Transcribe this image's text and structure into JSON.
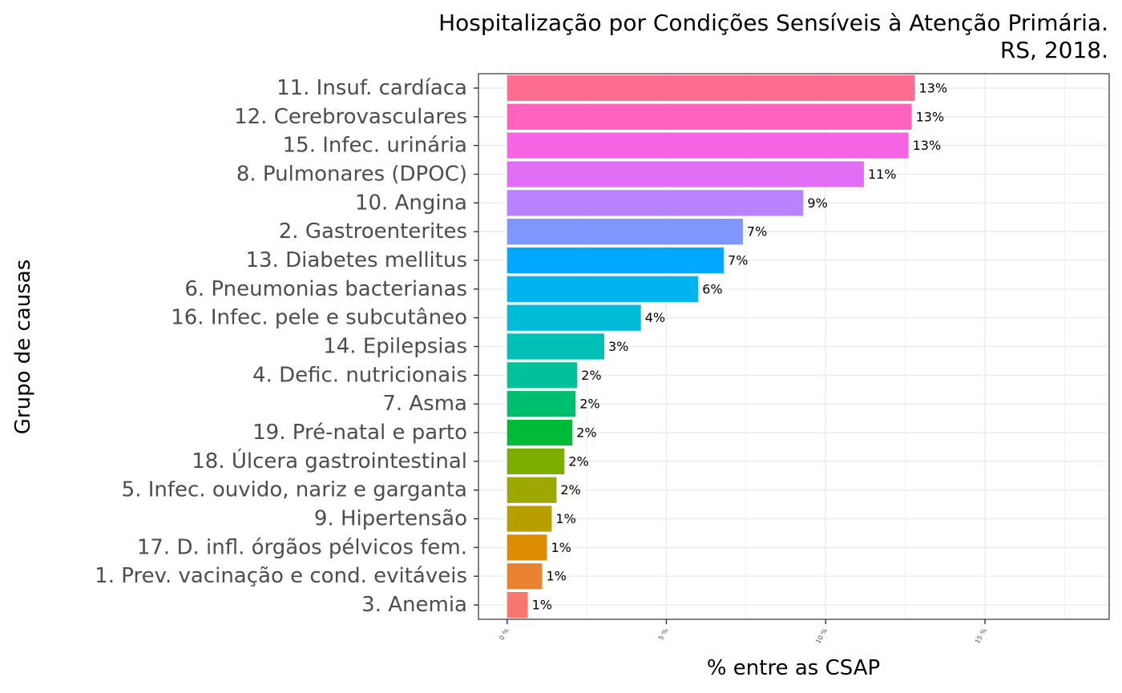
{
  "chart_data": {
    "type": "bar",
    "orientation": "horizontal",
    "title_line1": "Hospitalização por Condições Sensíveis à Atenção Primária.",
    "title_line2": "RS, 2018.",
    "xlabel": "% entre as CSAP",
    "ylabel": "Grupo de causas",
    "xlim": [
      -0.9,
      18.9
    ],
    "xticks": [
      0,
      5,
      10,
      15
    ],
    "xtick_labels": [
      "0 %",
      "5 %",
      "10 %",
      "15 %"
    ],
    "grid": true,
    "legend": "none",
    "categories": [
      "11. Insuf. cardíaca",
      "12. Cerebrovasculares",
      "15. Infec. urinária",
      "8. Pulmonares (DPOC)",
      "10. Angina",
      "2. Gastroenterites",
      "13. Diabetes mellitus",
      "6. Pneumonias bacterianas",
      "16. Infec. pele e subcutâneo",
      "14. Epilepsias",
      "4. Defic. nutricionais",
      "7. Asma",
      "19. Pré-natal e parto",
      "18. Úlcera gastrointestinal",
      "5. Infec. ouvido, nariz e garganta",
      "9. Hipertensão",
      "17. D. infl. órgãos pélvicos fem.",
      "1. Prev. vacinação e cond. evitáveis",
      "3. Anemia"
    ],
    "values": [
      12.8,
      12.7,
      12.6,
      11.2,
      9.3,
      7.4,
      6.8,
      6.0,
      4.2,
      3.05,
      2.2,
      2.15,
      2.05,
      1.8,
      1.55,
      1.4,
      1.25,
      1.1,
      0.65
    ],
    "value_labels": [
      "13%",
      "13%",
      "13%",
      "11%",
      "9%",
      "7%",
      "7%",
      "6%",
      "4%",
      "3%",
      "2%",
      "2%",
      "2%",
      "2%",
      "2%",
      "1%",
      "1%",
      "1%",
      "1%"
    ],
    "colors": [
      "#FF6C91",
      "#FF62BC",
      "#F564E3",
      "#E36EF6",
      "#B983FF",
      "#7F96FF",
      "#00A9FF",
      "#00B4F0",
      "#00BCD8",
      "#00C0B8",
      "#00C19A",
      "#00BE70",
      "#00BA38",
      "#7CAE00",
      "#9CA700",
      "#B79F00",
      "#DE8C00",
      "#EA8331",
      "#F8766D"
    ]
  }
}
